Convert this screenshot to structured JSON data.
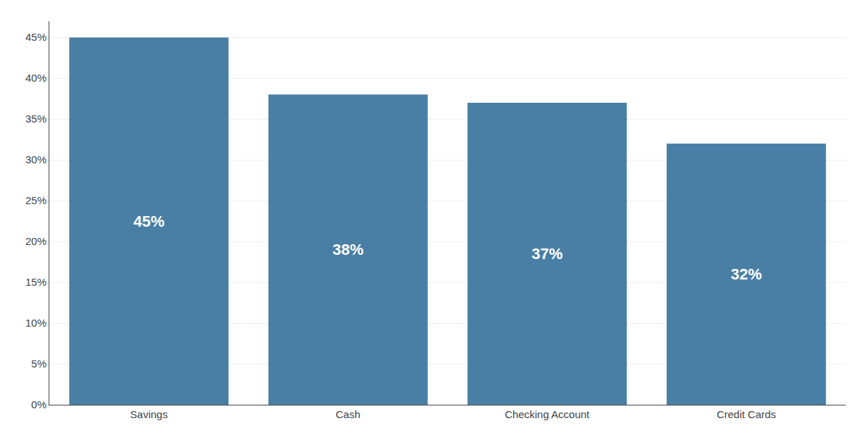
{
  "chart_data": {
    "type": "bar",
    "categories": [
      "Savings",
      "Cash",
      "Checking Account",
      "Credit Cards"
    ],
    "values": [
      45,
      38,
      37,
      32
    ],
    "value_labels": [
      "45%",
      "38%",
      "37%",
      "32%"
    ],
    "data_labels": true,
    "color": "#4a7fa5",
    "ylim": [
      0,
      47
    ],
    "yticks": [
      {
        "value": 0,
        "label": "0%"
      },
      {
        "value": 5,
        "label": "5%"
      },
      {
        "value": 10,
        "label": "10%"
      },
      {
        "value": 15,
        "label": "15%"
      },
      {
        "value": 20,
        "label": "20%"
      },
      {
        "value": 25,
        "label": "25%"
      },
      {
        "value": 30,
        "label": "30%"
      },
      {
        "value": 35,
        "label": "35%"
      },
      {
        "value": 40,
        "label": "40%"
      },
      {
        "value": 45,
        "label": "45%"
      }
    ],
    "grid": true
  }
}
